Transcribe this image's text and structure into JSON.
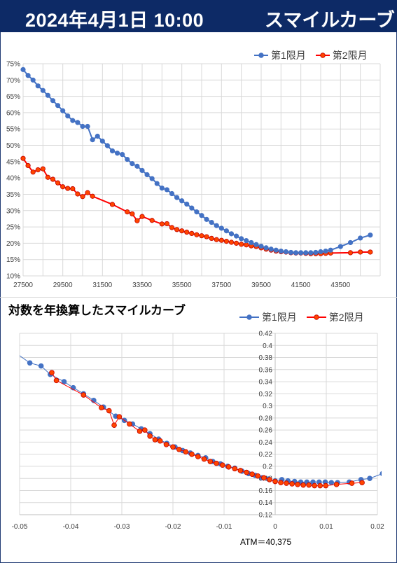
{
  "header": {
    "date": "2024年4月1日 10:00",
    "name": "スマイルカーブ"
  },
  "charts_colors": {
    "series1": "#4472C4",
    "series2": "#FF0000",
    "header_bg": "#0D2A66"
  },
  "chart_data": [
    {
      "type": "line",
      "title": "",
      "xlabel": "",
      "ylabel": "",
      "xlim": [
        27500,
        45500
      ],
      "ylim": [
        10,
        75
      ],
      "x_ticks": [
        "27500",
        "29500",
        "31500",
        "33500",
        "35500",
        "37500",
        "39500",
        "41500",
        "43500"
      ],
      "y_ticks": [
        "10%",
        "15%",
        "20%",
        "25%",
        "30%",
        "35%",
        "40%",
        "45%",
        "50%",
        "55%",
        "60%",
        "65%",
        "70%",
        "75%"
      ],
      "grid": true,
      "legend": "top-right",
      "series": [
        {
          "name": "第1限月",
          "color": "#4472C4",
          "points": [
            [
              27500,
              73.2
            ],
            [
              27750,
              71.4
            ],
            [
              28000,
              70.0
            ],
            [
              28250,
              68.2
            ],
            [
              28500,
              66.8
            ],
            [
              28750,
              65.3
            ],
            [
              29000,
              63.7
            ],
            [
              29250,
              62.2
            ],
            [
              29500,
              60.6
            ],
            [
              29750,
              59.0
            ],
            [
              30000,
              57.6
            ],
            [
              30250,
              57.0
            ],
            [
              30500,
              55.8
            ],
            [
              30750,
              55.8
            ],
            [
              31000,
              51.7
            ],
            [
              31250,
              52.8
            ],
            [
              31500,
              51.3
            ],
            [
              31750,
              49.9
            ],
            [
              32000,
              48.3
            ],
            [
              32250,
              47.6
            ],
            [
              32500,
              47.2
            ],
            [
              32750,
              45.7
            ],
            [
              33000,
              44.4
            ],
            [
              33250,
              43.6
            ],
            [
              33500,
              42.3
            ],
            [
              33750,
              41.0
            ],
            [
              34000,
              39.8
            ],
            [
              34250,
              38.3
            ],
            [
              34500,
              36.9
            ],
            [
              34750,
              36.4
            ],
            [
              35000,
              35.2
            ],
            [
              35250,
              34.0
            ],
            [
              35500,
              33.0
            ],
            [
              35750,
              32.0
            ],
            [
              36000,
              30.8
            ],
            [
              36250,
              29.6
            ],
            [
              36500,
              28.5
            ],
            [
              36750,
              27.3
            ],
            [
              37000,
              26.4
            ],
            [
              37250,
              25.4
            ],
            [
              37500,
              24.6
            ],
            [
              37750,
              23.8
            ],
            [
              38000,
              22.9
            ],
            [
              38250,
              22.2
            ],
            [
              38500,
              21.4
            ],
            [
              38750,
              20.8
            ],
            [
              39000,
              20.2
            ],
            [
              39250,
              19.6
            ],
            [
              39500,
              19.1
            ],
            [
              39750,
              18.6
            ],
            [
              40000,
              18.2
            ],
            [
              40250,
              17.9
            ],
            [
              40500,
              17.6
            ],
            [
              40750,
              17.4
            ],
            [
              41000,
              17.2
            ],
            [
              41250,
              17.1
            ],
            [
              41500,
              17.1
            ],
            [
              41750,
              17.1
            ],
            [
              42000,
              17.1
            ],
            [
              42250,
              17.2
            ],
            [
              42500,
              17.4
            ],
            [
              42750,
              17.6
            ],
            [
              43000,
              17.9
            ],
            [
              43500,
              19.0
            ],
            [
              44000,
              20.2
            ],
            [
              44500,
              21.6
            ],
            [
              45000,
              22.5
            ]
          ]
        },
        {
          "name": "第2限月",
          "color": "#FF0000",
          "points": [
            [
              27500,
              46.0
            ],
            [
              27750,
              43.8
            ],
            [
              28000,
              41.8
            ],
            [
              28250,
              42.5
            ],
            [
              28500,
              42.8
            ],
            [
              28750,
              40.2
            ],
            [
              29000,
              39.6
            ],
            [
              29250,
              38.5
            ],
            [
              29500,
              37.3
            ],
            [
              29750,
              36.8
            ],
            [
              30000,
              36.7
            ],
            [
              30250,
              35.1
            ],
            [
              30500,
              34.3
            ],
            [
              30750,
              35.5
            ],
            [
              31000,
              34.4
            ],
            [
              32000,
              31.9
            ],
            [
              32750,
              29.6
            ],
            [
              33000,
              29.0
            ],
            [
              33250,
              26.9
            ],
            [
              33500,
              28.2
            ],
            [
              34000,
              27.0
            ],
            [
              34500,
              25.9
            ],
            [
              34750,
              26.0
            ],
            [
              35000,
              24.8
            ],
            [
              35250,
              24.2
            ],
            [
              35500,
              23.8
            ],
            [
              35750,
              23.4
            ],
            [
              36000,
              23.0
            ],
            [
              36250,
              22.6
            ],
            [
              36500,
              22.3
            ],
            [
              36750,
              22.0
            ],
            [
              37000,
              21.5
            ],
            [
              37250,
              21.1
            ],
            [
              37500,
              20.9
            ],
            [
              37750,
              20.6
            ],
            [
              38000,
              20.3
            ],
            [
              38250,
              20.0
            ],
            [
              38500,
              19.7
            ],
            [
              38750,
              19.5
            ],
            [
              39000,
              19.2
            ],
            [
              39250,
              19.0
            ],
            [
              39500,
              18.6
            ],
            [
              39750,
              18.2
            ],
            [
              40000,
              17.9
            ],
            [
              40250,
              17.6
            ],
            [
              40500,
              17.4
            ],
            [
              40750,
              17.3
            ],
            [
              41000,
              17.1
            ],
            [
              41250,
              17.0
            ],
            [
              41500,
              17.0
            ],
            [
              41750,
              16.9
            ],
            [
              42000,
              16.8
            ],
            [
              42250,
              16.8
            ],
            [
              42500,
              16.8
            ],
            [
              42750,
              16.9
            ],
            [
              43000,
              17.0
            ],
            [
              44000,
              17.1
            ],
            [
              44500,
              17.3
            ],
            [
              45000,
              17.3
            ]
          ]
        }
      ]
    },
    {
      "type": "line",
      "title": "対数を年換算したスマイルカーブ",
      "xlabel": "",
      "ylabel": "",
      "xlim": [
        -0.05,
        0.02
      ],
      "ylim": [
        0.12,
        0.42
      ],
      "x_ticks": [
        "-0.05",
        "-0.04",
        "-0.03",
        "-0.02",
        "-0.01",
        "0",
        "0.01",
        "0.02"
      ],
      "y_ticks": [
        "0.12",
        "0.14",
        "0.16",
        "0.18",
        "0.2",
        "0.22",
        "0.24",
        "0.26",
        "0.28",
        "0.3",
        "0.32",
        "0.34",
        "0.36",
        "0.38",
        "0.4",
        "0.42"
      ],
      "grid": true,
      "legend": "top-right",
      "annotation": "ATM＝40,375",
      "series": [
        {
          "name": "第1限月",
          "color": "#4472C4",
          "points": [
            [
              -0.0515,
              0.392
            ],
            [
              -0.048,
              0.371
            ],
            [
              -0.0458,
              0.366
            ],
            [
              -0.044,
              0.352
            ],
            [
              -0.0413,
              0.34
            ],
            [
              -0.0395,
              0.33
            ],
            [
              -0.0375,
              0.32
            ],
            [
              -0.0355,
              0.309
            ],
            [
              -0.0336,
              0.298
            ],
            [
              -0.0312,
              0.283
            ],
            [
              -0.0295,
              0.276
            ],
            [
              -0.0279,
              0.27
            ],
            [
              -0.0262,
              0.262
            ],
            [
              -0.0245,
              0.254
            ],
            [
              -0.0228,
              0.245
            ],
            [
              -0.0212,
              0.238
            ],
            [
              -0.0196,
              0.232
            ],
            [
              -0.0181,
              0.226
            ],
            [
              -0.0166,
              0.222
            ],
            [
              -0.0151,
              0.218
            ],
            [
              -0.0136,
              0.214
            ],
            [
              -0.0122,
              0.208
            ],
            [
              -0.0107,
              0.204
            ],
            [
              -0.0093,
              0.2
            ],
            [
              -0.0079,
              0.197
            ],
            [
              -0.0065,
              0.192
            ],
            [
              -0.0052,
              0.188
            ],
            [
              -0.0039,
              0.185
            ],
            [
              -0.0026,
              0.181
            ],
            [
              -0.0013,
              0.179
            ],
            [
              0.0,
              0.176
            ],
            [
              0.0013,
              0.178
            ],
            [
              0.0025,
              0.176
            ],
            [
              0.0038,
              0.175
            ],
            [
              0.005,
              0.174
            ],
            [
              0.0062,
              0.174
            ],
            [
              0.0074,
              0.174
            ],
            [
              0.0086,
              0.174
            ],
            [
              0.0098,
              0.174
            ],
            [
              0.011,
              0.173
            ],
            [
              0.0122,
              0.173
            ],
            [
              0.0145,
              0.174
            ],
            [
              0.0168,
              0.178
            ],
            [
              0.0185,
              0.18
            ],
            [
              0.021,
              0.188
            ]
          ]
        },
        {
          "name": "第2限月",
          "color": "#FF0000",
          "points": [
            [
              -0.0437,
              0.355
            ],
            [
              -0.0428,
              0.342
            ],
            [
              -0.0375,
              0.318
            ],
            [
              -0.034,
              0.297
            ],
            [
              -0.0325,
              0.292
            ],
            [
              -0.0315,
              0.268
            ],
            [
              -0.0305,
              0.282
            ],
            [
              -0.0285,
              0.27
            ],
            [
              -0.0265,
              0.258
            ],
            [
              -0.0255,
              0.26
            ],
            [
              -0.0245,
              0.25
            ],
            [
              -0.0235,
              0.244
            ],
            [
              -0.0225,
              0.242
            ],
            [
              -0.0213,
              0.236
            ],
            [
              -0.02,
              0.232
            ],
            [
              -0.0188,
              0.228
            ],
            [
              -0.0175,
              0.224
            ],
            [
              -0.0163,
              0.22
            ],
            [
              -0.0151,
              0.216
            ],
            [
              -0.0139,
              0.212
            ],
            [
              -0.0127,
              0.208
            ],
            [
              -0.0115,
              0.205
            ],
            [
              -0.0103,
              0.202
            ],
            [
              -0.0091,
              0.199
            ],
            [
              -0.0079,
              0.196
            ],
            [
              -0.0068,
              0.193
            ],
            [
              -0.0056,
              0.19
            ],
            [
              -0.0045,
              0.187
            ],
            [
              -0.0034,
              0.184
            ],
            [
              -0.0022,
              0.181
            ],
            [
              -0.0011,
              0.178
            ],
            [
              0.0,
              0.175
            ],
            [
              0.0011,
              0.173
            ],
            [
              0.0022,
              0.172
            ],
            [
              0.0033,
              0.171
            ],
            [
              0.0044,
              0.17
            ],
            [
              0.0055,
              0.169
            ],
            [
              0.0066,
              0.169
            ],
            [
              0.0077,
              0.168
            ],
            [
              0.0088,
              0.168
            ],
            [
              0.0099,
              0.168
            ],
            [
              0.012,
              0.17
            ],
            [
              0.015,
              0.172
            ],
            [
              0.017,
              0.173
            ]
          ]
        }
      ]
    }
  ]
}
